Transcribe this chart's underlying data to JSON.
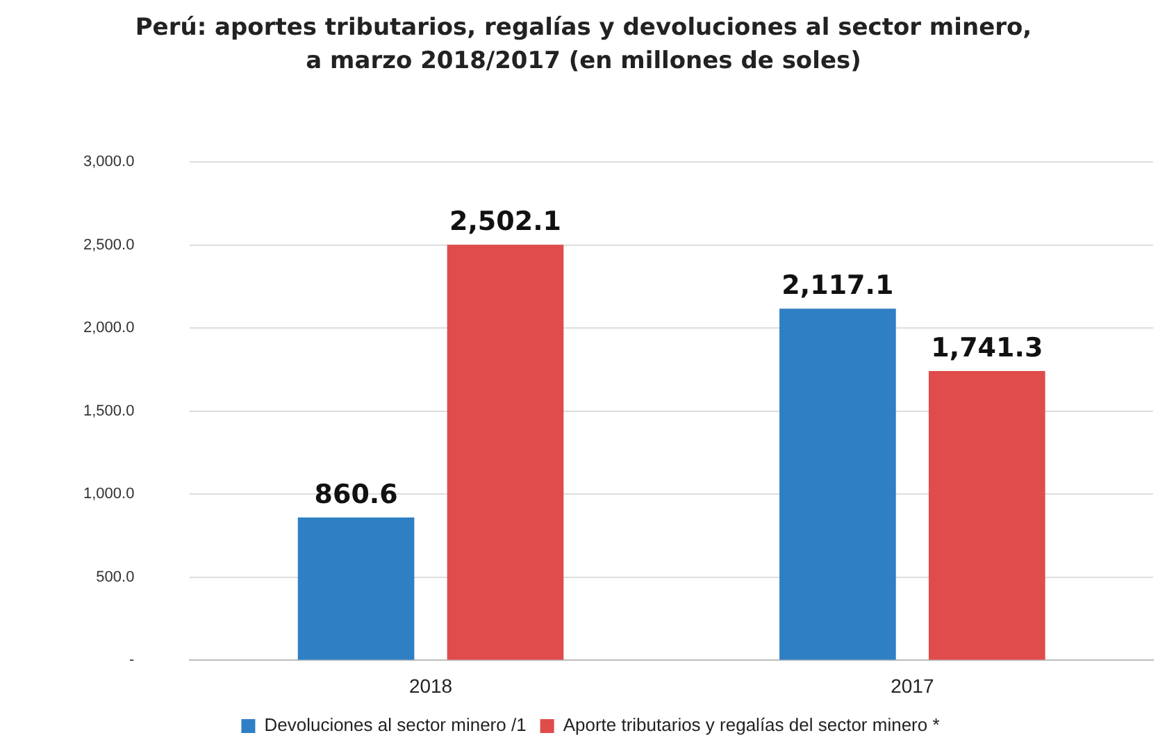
{
  "chart_data": {
    "type": "bar",
    "title": "Perú: aportes tributarios, regalías y devoluciones al sector minero,\na marzo 2018/2017 (en millones de soles)",
    "categories": [
      "2018",
      "2017"
    ],
    "series": [
      {
        "name": "Devoluciones al sector minero /1",
        "color": "#2e7fc4",
        "values": [
          860.6,
          2117.1
        ],
        "value_labels": [
          "860.6",
          "2,117.1"
        ]
      },
      {
        "name": "Aporte tributarios y regalías del sector minero *",
        "color": "#e04b4b",
        "values": [
          2502.1,
          1741.3
        ],
        "value_labels": [
          "2,502.1",
          "1,741.3"
        ]
      }
    ],
    "ylim": [
      0,
      3000
    ],
    "yticks": [
      {
        "value": 0,
        "label": "-"
      },
      {
        "value": 500,
        "label": "500.0"
      },
      {
        "value": 1000,
        "label": "1,000.0"
      },
      {
        "value": 1500,
        "label": "1,500.0"
      },
      {
        "value": 2000,
        "label": "2,000.0"
      },
      {
        "value": 2500,
        "label": "2,500.0"
      },
      {
        "value": 3000,
        "label": "3,000.0"
      }
    ],
    "grid": "y",
    "legend": "bottom"
  }
}
